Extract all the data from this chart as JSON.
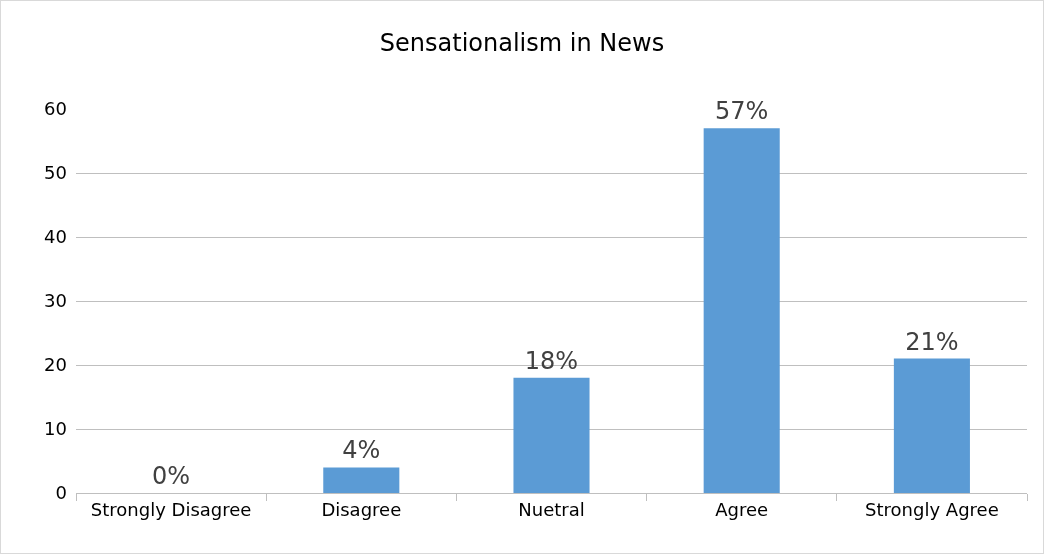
{
  "chart_data": {
    "type": "bar",
    "title": "Sensationalism in News",
    "categories": [
      "Strongly Disagree",
      "Disagree",
      "Nuetral",
      "Agree",
      "Strongly Agree"
    ],
    "values": [
      0,
      4,
      18,
      57,
      21
    ],
    "value_labels": [
      "0%",
      "4%",
      "18%",
      "57%",
      "21%"
    ],
    "color": "#5b9bd5",
    "ylim": [
      0,
      60
    ],
    "yticks": [
      0,
      10,
      20,
      30,
      40,
      50,
      60
    ],
    "grid": "y"
  }
}
